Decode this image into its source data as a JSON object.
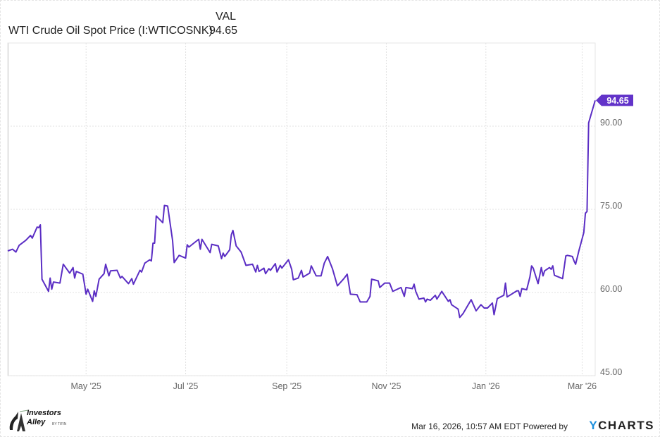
{
  "legend": {
    "column_header": "VAL",
    "series_name": "WTI Crude Oil Spot Price (I:WTICOSNK)",
    "series_value": "94.65"
  },
  "footer": {
    "timestamp": "Mar 16, 2026, 10:57 AM EDT",
    "powered_by": "Powered by",
    "brand_y": "Y",
    "brand_rest": "CHARTS",
    "logo_text": [
      "Investors",
      "Alley",
      "BY TIFIN"
    ]
  },
  "colors": {
    "line": "#5b2ec4",
    "badge": "#6233c9",
    "grid": "#e2e2e2",
    "brand": "#1c8fdc"
  },
  "chart_data": {
    "type": "line",
    "title": "",
    "xlabel": "",
    "ylabel": "",
    "x_range": [
      "2025-03-14",
      "2026-03-09"
    ],
    "ylim": [
      45,
      105
    ],
    "y_ticks": [
      45,
      60,
      75,
      90
    ],
    "y_tick_labels": [
      "45.00",
      "60.00",
      "75.00",
      "90.00"
    ],
    "x_ticks": [
      "2025-05-01",
      "2025-07-01",
      "2025-09-01",
      "2025-11-01",
      "2026-01-01",
      "2026-03-01"
    ],
    "x_tick_labels": [
      "May '25",
      "Jul '25",
      "Sep '25",
      "Nov '25",
      "Jan '26",
      "Mar '26"
    ],
    "grid": true,
    "last_value_label": "94.65",
    "series": [
      {
        "name": "WTI Crude Oil Spot Price (I:WTICOSNK)",
        "points": [
          [
            "2025-03-14",
            67.5
          ],
          [
            "2025-03-17",
            67.8
          ],
          [
            "2025-03-19",
            67.3
          ],
          [
            "2025-03-21",
            68.5
          ],
          [
            "2025-03-25",
            69.4
          ],
          [
            "2025-03-28",
            70.3
          ],
          [
            "2025-03-29",
            69.8
          ],
          [
            "2025-04-01",
            71.8
          ],
          [
            "2025-04-02",
            71.7
          ],
          [
            "2025-04-03",
            72.2
          ],
          [
            "2025-04-04",
            62.4
          ],
          [
            "2025-04-08",
            60.2
          ],
          [
            "2025-04-09",
            62.6
          ],
          [
            "2025-04-10",
            60.6
          ],
          [
            "2025-04-11",
            61.9
          ],
          [
            "2025-04-15",
            61.7
          ],
          [
            "2025-04-17",
            65.1
          ],
          [
            "2025-04-21",
            63.5
          ],
          [
            "2025-04-23",
            64.5
          ],
          [
            "2025-04-24",
            62.6
          ],
          [
            "2025-04-25",
            63.8
          ],
          [
            "2025-04-29",
            63.3
          ],
          [
            "2025-05-01",
            59.7
          ],
          [
            "2025-05-02",
            60.6
          ],
          [
            "2025-05-05",
            58.4
          ],
          [
            "2025-05-06",
            60.3
          ],
          [
            "2025-05-07",
            59.3
          ],
          [
            "2025-05-09",
            62.4
          ],
          [
            "2025-05-12",
            63.4
          ],
          [
            "2025-05-13",
            65.1
          ],
          [
            "2025-05-15",
            63.0
          ],
          [
            "2025-05-16",
            63.9
          ],
          [
            "2025-05-20",
            64.0
          ],
          [
            "2025-05-22",
            62.6
          ],
          [
            "2025-05-23",
            62.9
          ],
          [
            "2025-05-27",
            61.6
          ],
          [
            "2025-05-29",
            62.5
          ],
          [
            "2025-05-30",
            61.5
          ],
          [
            "2025-06-03",
            64.0
          ],
          [
            "2025-06-04",
            63.7
          ],
          [
            "2025-06-06",
            65.3
          ],
          [
            "2025-06-09",
            65.9
          ],
          [
            "2025-06-10",
            65.7
          ],
          [
            "2025-06-11",
            68.9
          ],
          [
            "2025-06-12",
            68.9
          ],
          [
            "2025-06-13",
            73.8
          ],
          [
            "2025-06-17",
            72.6
          ],
          [
            "2025-06-18",
            75.7
          ],
          [
            "2025-06-20",
            75.6
          ],
          [
            "2025-06-23",
            69.4
          ],
          [
            "2025-06-24",
            65.4
          ],
          [
            "2025-06-27",
            66.7
          ],
          [
            "2025-07-01",
            66.2
          ],
          [
            "2025-07-02",
            68.6
          ],
          [
            "2025-07-03",
            68.2
          ],
          [
            "2025-07-09",
            69.6
          ],
          [
            "2025-07-10",
            67.8
          ],
          [
            "2025-07-11",
            69.6
          ],
          [
            "2025-07-16",
            67.2
          ],
          [
            "2025-07-17",
            68.7
          ],
          [
            "2025-07-21",
            68.4
          ],
          [
            "2025-07-23",
            66.1
          ],
          [
            "2025-07-24",
            67.1
          ],
          [
            "2025-07-25",
            66.5
          ],
          [
            "2025-07-28",
            67.7
          ],
          [
            "2025-07-29",
            70.4
          ],
          [
            "2025-07-30",
            71.2
          ],
          [
            "2025-08-01",
            68.4
          ],
          [
            "2025-08-04",
            67.3
          ],
          [
            "2025-08-07",
            64.9
          ],
          [
            "2025-08-11",
            65.1
          ],
          [
            "2025-08-13",
            63.7
          ],
          [
            "2025-08-14",
            64.9
          ],
          [
            "2025-08-15",
            63.8
          ],
          [
            "2025-08-18",
            64.4
          ],
          [
            "2025-08-19",
            63.4
          ],
          [
            "2025-08-21",
            64.3
          ],
          [
            "2025-08-22",
            64.0
          ],
          [
            "2025-08-25",
            65.2
          ],
          [
            "2025-08-26",
            63.7
          ],
          [
            "2025-08-28",
            64.9
          ],
          [
            "2025-08-29",
            64.4
          ],
          [
            "2025-09-02",
            65.9
          ],
          [
            "2025-09-04",
            64.2
          ],
          [
            "2025-09-05",
            62.3
          ],
          [
            "2025-09-08",
            62.6
          ],
          [
            "2025-09-10",
            64.0
          ],
          [
            "2025-09-11",
            62.8
          ],
          [
            "2025-09-15",
            63.5
          ],
          [
            "2025-09-16",
            64.8
          ],
          [
            "2025-09-19",
            63.0
          ],
          [
            "2025-09-22",
            63.0
          ],
          [
            "2025-09-24",
            65.3
          ],
          [
            "2025-09-26",
            66.5
          ],
          [
            "2025-09-29",
            64.3
          ],
          [
            "2025-10-02",
            61.2
          ],
          [
            "2025-10-06",
            62.5
          ],
          [
            "2025-10-08",
            63.3
          ],
          [
            "2025-10-10",
            59.7
          ],
          [
            "2025-10-14",
            59.6
          ],
          [
            "2025-10-16",
            58.3
          ],
          [
            "2025-10-20",
            58.3
          ],
          [
            "2025-10-22",
            59.3
          ],
          [
            "2025-10-23",
            62.4
          ],
          [
            "2025-10-27",
            62.1
          ],
          [
            "2025-10-28",
            60.9
          ],
          [
            "2025-10-31",
            61.7
          ],
          [
            "2025-11-03",
            61.7
          ],
          [
            "2025-11-05",
            60.2
          ],
          [
            "2025-11-10",
            60.9
          ],
          [
            "2025-11-12",
            59.3
          ],
          [
            "2025-11-13",
            60.9
          ],
          [
            "2025-11-17",
            60.7
          ],
          [
            "2025-11-18",
            61.5
          ],
          [
            "2025-11-19",
            60.2
          ],
          [
            "2025-11-21",
            58.8
          ],
          [
            "2025-11-24",
            59.0
          ],
          [
            "2025-11-25",
            58.3
          ],
          [
            "2025-11-26",
            58.8
          ],
          [
            "2025-11-28",
            58.6
          ],
          [
            "2025-12-01",
            59.5
          ],
          [
            "2025-12-02",
            58.8
          ],
          [
            "2025-12-05",
            60.2
          ],
          [
            "2025-12-09",
            58.4
          ],
          [
            "2025-12-10",
            58.7
          ],
          [
            "2025-12-11",
            57.8
          ],
          [
            "2025-12-15",
            57.0
          ],
          [
            "2025-12-16",
            55.5
          ],
          [
            "2025-12-18",
            56.2
          ],
          [
            "2025-12-23",
            58.7
          ],
          [
            "2025-12-26",
            56.7
          ],
          [
            "2025-12-29",
            57.8
          ],
          [
            "2025-12-31",
            57.2
          ],
          [
            "2026-01-02",
            57.2
          ],
          [
            "2026-01-05",
            58.1
          ],
          [
            "2026-01-06",
            56.0
          ],
          [
            "2026-01-08",
            58.9
          ],
          [
            "2026-01-12",
            59.5
          ],
          [
            "2026-01-13",
            61.7
          ],
          [
            "2026-01-14",
            59.2
          ],
          [
            "2026-01-20",
            60.3
          ],
          [
            "2026-01-21",
            60.3
          ],
          [
            "2026-01-22",
            59.3
          ],
          [
            "2026-01-23",
            60.7
          ],
          [
            "2026-01-26",
            60.5
          ],
          [
            "2026-01-28",
            62.8
          ],
          [
            "2026-01-29",
            64.8
          ],
          [
            "2026-01-30",
            64.4
          ],
          [
            "2026-02-02",
            61.6
          ],
          [
            "2026-02-04",
            64.5
          ],
          [
            "2026-02-05",
            63.0
          ],
          [
            "2026-02-06",
            63.9
          ],
          [
            "2026-02-09",
            64.5
          ],
          [
            "2026-02-10",
            64.2
          ],
          [
            "2026-02-11",
            64.8
          ],
          [
            "2026-02-12",
            63.1
          ],
          [
            "2026-02-17",
            62.5
          ],
          [
            "2026-02-19",
            66.6
          ],
          [
            "2026-02-20",
            66.7
          ],
          [
            "2026-02-23",
            66.5
          ],
          [
            "2026-02-24",
            65.7
          ],
          [
            "2026-02-25",
            65.1
          ],
          [
            "2026-02-27",
            67.5
          ],
          [
            "2026-03-02",
            70.8
          ],
          [
            "2026-03-03",
            74.3
          ],
          [
            "2026-03-04",
            74.6
          ],
          [
            "2026-03-05",
            90.6
          ],
          [
            "2026-03-09",
            94.65
          ]
        ]
      }
    ]
  }
}
